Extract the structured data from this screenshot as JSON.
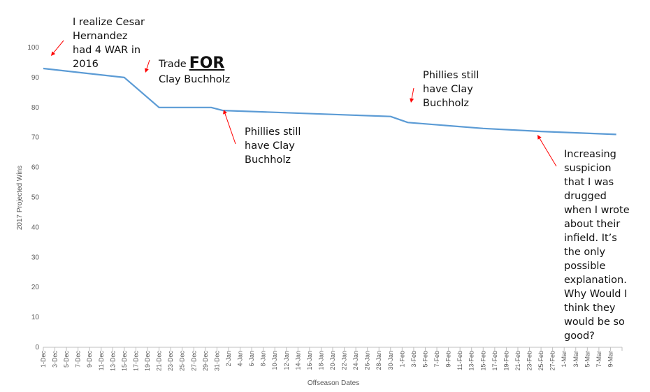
{
  "chart_data": {
    "type": "line",
    "xlabel": "Offseason Dates",
    "ylabel": "2017 Projected Wins",
    "ylim": [
      0,
      100
    ],
    "yticks": [
      0,
      10,
      20,
      30,
      40,
      50,
      60,
      70,
      80,
      90,
      100
    ],
    "categories": [
      "1-Dec",
      "3-Dec",
      "5-Dec",
      "7-Dec",
      "9-Dec",
      "11-Dec",
      "13-Dec",
      "15-Dec",
      "17-Dec",
      "19-Dec",
      "21-Dec",
      "23-Dec",
      "25-Dec",
      "27-Dec",
      "29-Dec",
      "31-Dec",
      "2-Jan",
      "4-Jan",
      "6-Jan",
      "8-Jan",
      "10-Jan",
      "12-Jan",
      "14-Jan",
      "16-Jan",
      "18-Jan",
      "20-Jan",
      "22-Jan",
      "24-Jan",
      "26-Jan",
      "28-Jan",
      "30-Jan",
      "1-Feb",
      "3-Feb",
      "5-Feb",
      "7-Feb",
      "9-Feb",
      "11-Feb",
      "13-Feb",
      "15-Feb",
      "17-Feb",
      "19-Feb",
      "21-Feb",
      "23-Feb",
      "25-Feb",
      "27-Feb",
      "1-Mar",
      "3-Mar",
      "5-Mar",
      "7-Mar",
      "9-Mar"
    ],
    "series": [
      {
        "color": "#5b9bd5",
        "points": [
          {
            "x": "1-Dec",
            "y": 93
          },
          {
            "x": "15-Dec",
            "y": 90
          },
          {
            "x": "21-Dec",
            "y": 80
          },
          {
            "x": "30-Dec",
            "y": 80
          },
          {
            "x": "1-Jan",
            "y": 79
          },
          {
            "x": "30-Jan",
            "y": 77
          },
          {
            "x": "2-Feb",
            "y": 75
          },
          {
            "x": "15-Feb",
            "y": 73
          },
          {
            "x": "25-Feb",
            "y": 72
          },
          {
            "x": "10-Mar",
            "y": 71
          }
        ]
      }
    ],
    "grid": false,
    "legend": "none",
    "annotations": [
      {
        "id": "cesar",
        "text": "I realize Cesar\nHernandez\nhad 4 WAR in\n2016",
        "x": "1-Dec"
      },
      {
        "id": "trade",
        "text_before": "Trade",
        "text_emphasis": "FOR",
        "text_after": "Clay Buchholz",
        "x": "15-Dec"
      },
      {
        "id": "still1",
        "text": "Phillies still\nhave Clay\nBuchholz",
        "x": "31-Dec"
      },
      {
        "id": "still2",
        "text": "Phillies still\nhave Clay\nBuchholz",
        "x": "1-Feb"
      },
      {
        "id": "suspicion",
        "text": "Increasing\nsuspicion\nthat I was\ndrugged\nwhen I wrote\nabout their\ninfield. It’s\nthe only\npossible\nexplanation.\nWhy Would I\nthink they\nwould be so\ngood?",
        "x": "25-Feb"
      }
    ],
    "arrow_color": "#ff0000"
  }
}
